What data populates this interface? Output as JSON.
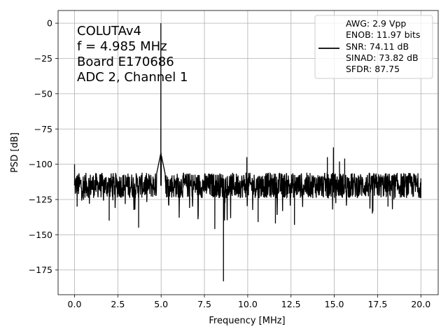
{
  "chart_data": {
    "type": "line",
    "title": "",
    "xlabel": "Frequency [MHz]",
    "ylabel": "PSD [dB]",
    "xlim": [
      -0.95,
      21.0
    ],
    "ylim": [
      -192.5,
      9.0
    ],
    "xticks": [
      0.0,
      2.5,
      5.0,
      7.5,
      10.0,
      12.5,
      15.0,
      17.5,
      20.0
    ],
    "xtick_labels": [
      "0.0",
      "2.5",
      "5.0",
      "7.5",
      "10.0",
      "12.5",
      "15.0",
      "17.5",
      "20.0"
    ],
    "yticks": [
      0,
      -25,
      -50,
      -75,
      -100,
      -125,
      -150,
      -175
    ],
    "ytick_labels": [
      "0",
      "−25",
      "−50",
      "−75",
      "−100",
      "−125",
      "−150",
      "−175"
    ],
    "grid": true,
    "line_color": "#000000",
    "annotation_lines": [
      "COLUTAv4",
      "f = 4.985 MHz",
      "Board E170686",
      "ADC 2, Channel 1"
    ],
    "legend": {
      "placement": "top-right",
      "lines": [
        "AWG: 2.9 Vpp",
        "ENOB: 11.97 bits",
        "SNR: 74.11 dB",
        "SINAD: 73.82 dB",
        "SFDR: 87.75"
      ]
    },
    "noise_floor_db": -115,
    "noise_band_db": [
      -106,
      -124
    ],
    "series": [
      {
        "name": "",
        "peaks": [
          {
            "x": 0.0,
            "y": -100
          },
          {
            "x": 0.15,
            "y": -130
          },
          {
            "x": 2.0,
            "y": -140
          },
          {
            "x": 3.7,
            "y": -145
          },
          {
            "x": 4.985,
            "y": 0
          },
          {
            "x": 5.0,
            "y": -92
          },
          {
            "x": 9.9,
            "y": -106
          },
          {
            "x": 8.1,
            "y": -146
          },
          {
            "x": 8.6,
            "y": -183
          },
          {
            "x": 9.95,
            "y": -95
          },
          {
            "x": 10.6,
            "y": -141
          },
          {
            "x": 11.6,
            "y": -142
          },
          {
            "x": 12.7,
            "y": -143
          },
          {
            "x": 14.6,
            "y": -95
          },
          {
            "x": 14.95,
            "y": -88
          },
          {
            "x": 15.3,
            "y": -98
          },
          {
            "x": 15.6,
            "y": -96
          },
          {
            "x": 17.2,
            "y": -135
          },
          {
            "x": 18.1,
            "y": -130
          },
          {
            "x": 20.0,
            "y": -110
          }
        ]
      }
    ]
  }
}
